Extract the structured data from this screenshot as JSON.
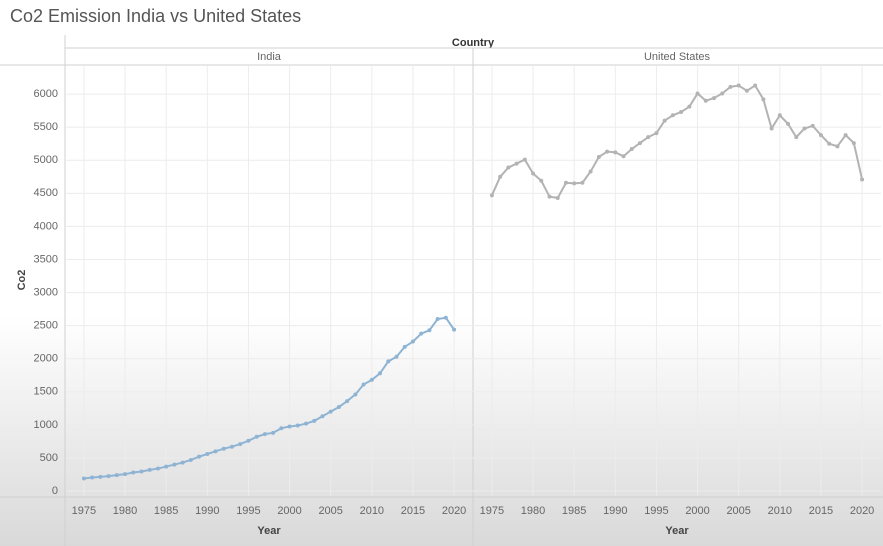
{
  "chart_data": {
    "type": "line",
    "title": "Co2 Emission India vs  United States",
    "column_header": "Country",
    "x_label": "Year",
    "y_label": "Co2",
    "x": [
      1975,
      1976,
      1977,
      1978,
      1979,
      1980,
      1981,
      1982,
      1983,
      1984,
      1985,
      1986,
      1987,
      1988,
      1989,
      1990,
      1991,
      1992,
      1993,
      1994,
      1995,
      1996,
      1997,
      1998,
      1999,
      2000,
      2001,
      2002,
      2003,
      2004,
      2005,
      2006,
      2007,
      2008,
      2009,
      2010,
      2011,
      2012,
      2013,
      2014,
      2015,
      2016,
      2017,
      2018,
      2019,
      2020
    ],
    "xlim": [
      1972.7,
      2022.3
    ],
    "xticks": [
      1975,
      1980,
      1985,
      1990,
      1995,
      2000,
      2005,
      2010,
      2015,
      2020
    ],
    "ylim": [
      -90,
      6440
    ],
    "yticks": [
      0,
      500,
      1000,
      1500,
      2000,
      2500,
      3000,
      3500,
      4000,
      4500,
      5000,
      5500,
      6000
    ],
    "grid": true,
    "series": [
      {
        "name": "India",
        "color": "#8fb4d3",
        "values": [
          190,
          205,
          215,
          225,
          240,
          255,
          280,
          295,
          320,
          340,
          370,
          400,
          430,
          470,
          520,
          560,
          600,
          640,
          670,
          710,
          760,
          820,
          860,
          880,
          950,
          975,
          990,
          1020,
          1060,
          1130,
          1200,
          1270,
          1360,
          1460,
          1610,
          1680,
          1780,
          1960,
          2030,
          2180,
          2260,
          2380,
          2430,
          2600,
          2620,
          2440
        ]
      },
      {
        "name": "United States",
        "color": "#b3b3b3",
        "values": [
          4470,
          4750,
          4890,
          4950,
          5010,
          4800,
          4690,
          4450,
          4430,
          4660,
          4650,
          4660,
          4830,
          5050,
          5130,
          5120,
          5060,
          5170,
          5260,
          5350,
          5410,
          5600,
          5680,
          5730,
          5810,
          6010,
          5900,
          5940,
          6010,
          6110,
          6130,
          6050,
          6130,
          5920,
          5480,
          5680,
          5550,
          5350,
          5480,
          5520,
          5380,
          5250,
          5210,
          5380,
          5260,
          4710
        ]
      }
    ]
  }
}
